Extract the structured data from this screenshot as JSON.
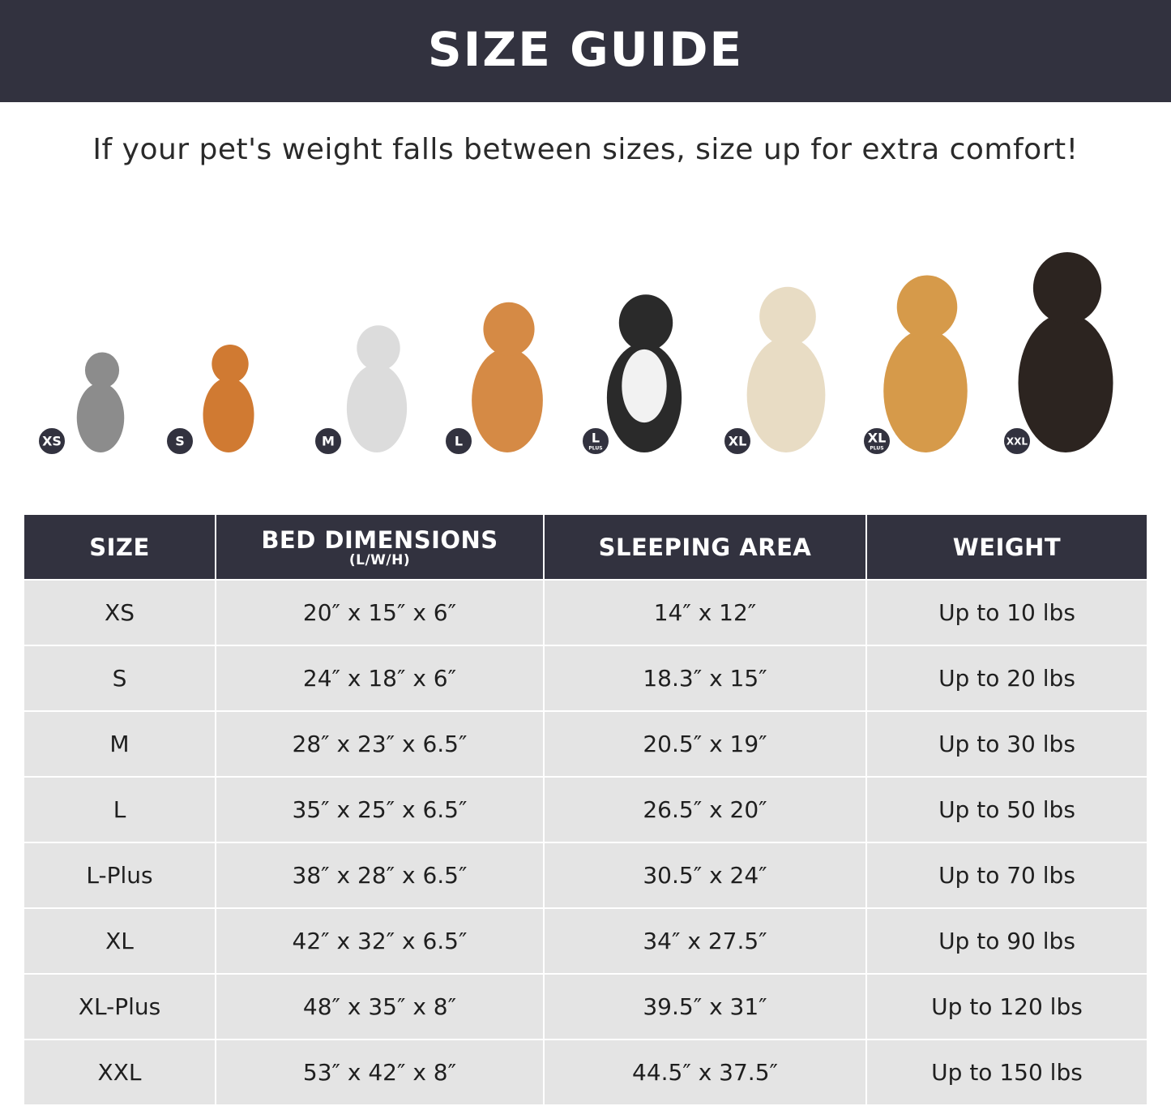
{
  "header": {
    "title": "SIZE GUIDE"
  },
  "subtitle": "If your pet's weight falls between sizes, size up for extra comfort!",
  "pets": [
    {
      "label": "XS"
    },
    {
      "label": "S"
    },
    {
      "label": "M"
    },
    {
      "label": "L"
    },
    {
      "label": "L",
      "sub": "PLUS"
    },
    {
      "label": "XL"
    },
    {
      "label": "XL",
      "sub": "PLUS"
    },
    {
      "label": "XXL"
    }
  ],
  "table": {
    "columns": [
      {
        "title": "SIZE"
      },
      {
        "title": "BED DIMENSIONS",
        "note": "(L/W/H)"
      },
      {
        "title": "SLEEPING AREA"
      },
      {
        "title": "WEIGHT"
      }
    ],
    "rows": [
      [
        "XS",
        "20″ x 15″ x 6″",
        "14″ x 12″",
        "Up to 10 lbs"
      ],
      [
        "S",
        "24″ x 18″ x 6″",
        "18.3″ x 15″",
        "Up to 20 lbs"
      ],
      [
        "M",
        "28″ x 23″ x 6.5″",
        "20.5″ x 19″",
        "Up to 30 lbs"
      ],
      [
        "L",
        "35″ x 25″ x 6.5″",
        "26.5″ x 20″",
        "Up to 50 lbs"
      ],
      [
        "L-Plus",
        "38″ x 28″ x 6.5″",
        "30.5″ x 24″",
        "Up to 70 lbs"
      ],
      [
        "XL",
        "42″ x 32″ x 6.5″",
        "34″ x 27.5″",
        "Up to 90 lbs"
      ],
      [
        "XL-Plus",
        "48″ x 35″ x 8″",
        "39.5″ x 31″",
        "Up to 120 lbs"
      ],
      [
        "XXL",
        "53″ x 42″ x 8″",
        "44.5″ x 37.5″",
        "Up to 150 lbs"
      ]
    ]
  }
}
